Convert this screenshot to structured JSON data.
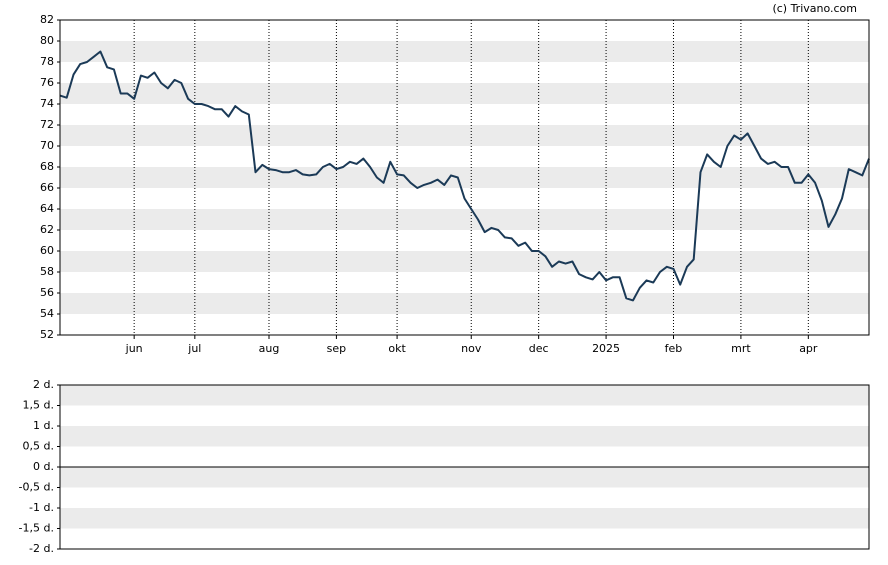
{
  "credit": "(c) Trivano.com",
  "chart_data": [
    {
      "type": "line",
      "categories": [
        null,
        null,
        null,
        null,
        null,
        null,
        null,
        null,
        null,
        null,
        null,
        "jun",
        null,
        null,
        null,
        null,
        null,
        null,
        null,
        null,
        "jul",
        null,
        null,
        null,
        null,
        null,
        null,
        null,
        null,
        null,
        null,
        "aug",
        null,
        null,
        null,
        null,
        null,
        null,
        null,
        null,
        null,
        "sep",
        null,
        null,
        null,
        null,
        null,
        null,
        null,
        null,
        "okt",
        null,
        null,
        null,
        null,
        null,
        null,
        null,
        null,
        null,
        null,
        "nov",
        null,
        null,
        null,
        null,
        null,
        null,
        null,
        null,
        null,
        "dec",
        null,
        null,
        null,
        null,
        null,
        null,
        null,
        null,
        null,
        "2025",
        null,
        null,
        null,
        null,
        null,
        null,
        null,
        null,
        null,
        "feb",
        null,
        null,
        null,
        null,
        null,
        null,
        null,
        null,
        null,
        "mrt",
        null,
        null,
        null,
        null,
        null,
        null,
        null,
        null,
        null,
        "apr",
        null,
        null,
        null,
        null,
        null,
        null,
        null,
        null,
        null
      ],
      "series": [
        {
          "color": "#1b3a57",
          "values": [
            74.8,
            74.6,
            76.8,
            77.8,
            78.0,
            78.5,
            79.0,
            77.5,
            77.3,
            75.0,
            75.0,
            74.5,
            76.7,
            76.5,
            77.0,
            76.0,
            75.5,
            76.3,
            76.0,
            74.5,
            74.0,
            74.0,
            73.8,
            73.5,
            73.5,
            72.8,
            73.8,
            73.3,
            73.0,
            67.5,
            68.2,
            67.8,
            67.7,
            67.5,
            67.5,
            67.7,
            67.3,
            67.2,
            67.3,
            68.0,
            68.3,
            67.8,
            68.0,
            68.5,
            68.3,
            68.8,
            68.0,
            67.0,
            66.5,
            68.5,
            67.3,
            67.2,
            66.5,
            66.0,
            66.3,
            66.5,
            66.8,
            66.3,
            67.2,
            67.0,
            65.0,
            64.0,
            63.0,
            61.8,
            62.2,
            62.0,
            61.3,
            61.2,
            60.5,
            60.8,
            60.0,
            60.0,
            59.5,
            58.5,
            59.0,
            58.8,
            59.0,
            57.8,
            57.5,
            57.3,
            58.0,
            57.2,
            57.5,
            57.5,
            55.5,
            55.3,
            56.5,
            57.2,
            57.0,
            58.0,
            58.5,
            58.3,
            56.8,
            58.5,
            59.2,
            67.5,
            69.2,
            68.5,
            68.0,
            70.0,
            71.0,
            70.6,
            71.2,
            70.0,
            68.8,
            68.3,
            68.5,
            68.0,
            68.0,
            66.5,
            66.5,
            67.3,
            66.5,
            64.8,
            62.3,
            63.5,
            65.0,
            67.8,
            67.5,
            67.2,
            68.8
          ]
        }
      ],
      "ylim": [
        52,
        82
      ],
      "yticks": [
        52,
        54,
        56,
        58,
        60,
        62,
        64,
        66,
        68,
        70,
        72,
        74,
        76,
        78,
        80,
        82
      ],
      "grid": true
    },
    {
      "type": "line",
      "ylim": [
        -2,
        2
      ],
      "yticks": [
        {
          "value": -2,
          "label": "-2 d."
        },
        {
          "value": -1.5,
          "label": "-1,5 d."
        },
        {
          "value": -1,
          "label": "-1 d."
        },
        {
          "value": -0.5,
          "label": "-0,5 d."
        },
        {
          "value": 0,
          "label": "0 d."
        },
        {
          "value": 0.5,
          "label": "0,5 d."
        },
        {
          "value": 1,
          "label": "1 d."
        },
        {
          "value": 1.5,
          "label": "1,5 d."
        },
        {
          "value": 2,
          "label": "2 d."
        }
      ],
      "grid": true
    }
  ]
}
